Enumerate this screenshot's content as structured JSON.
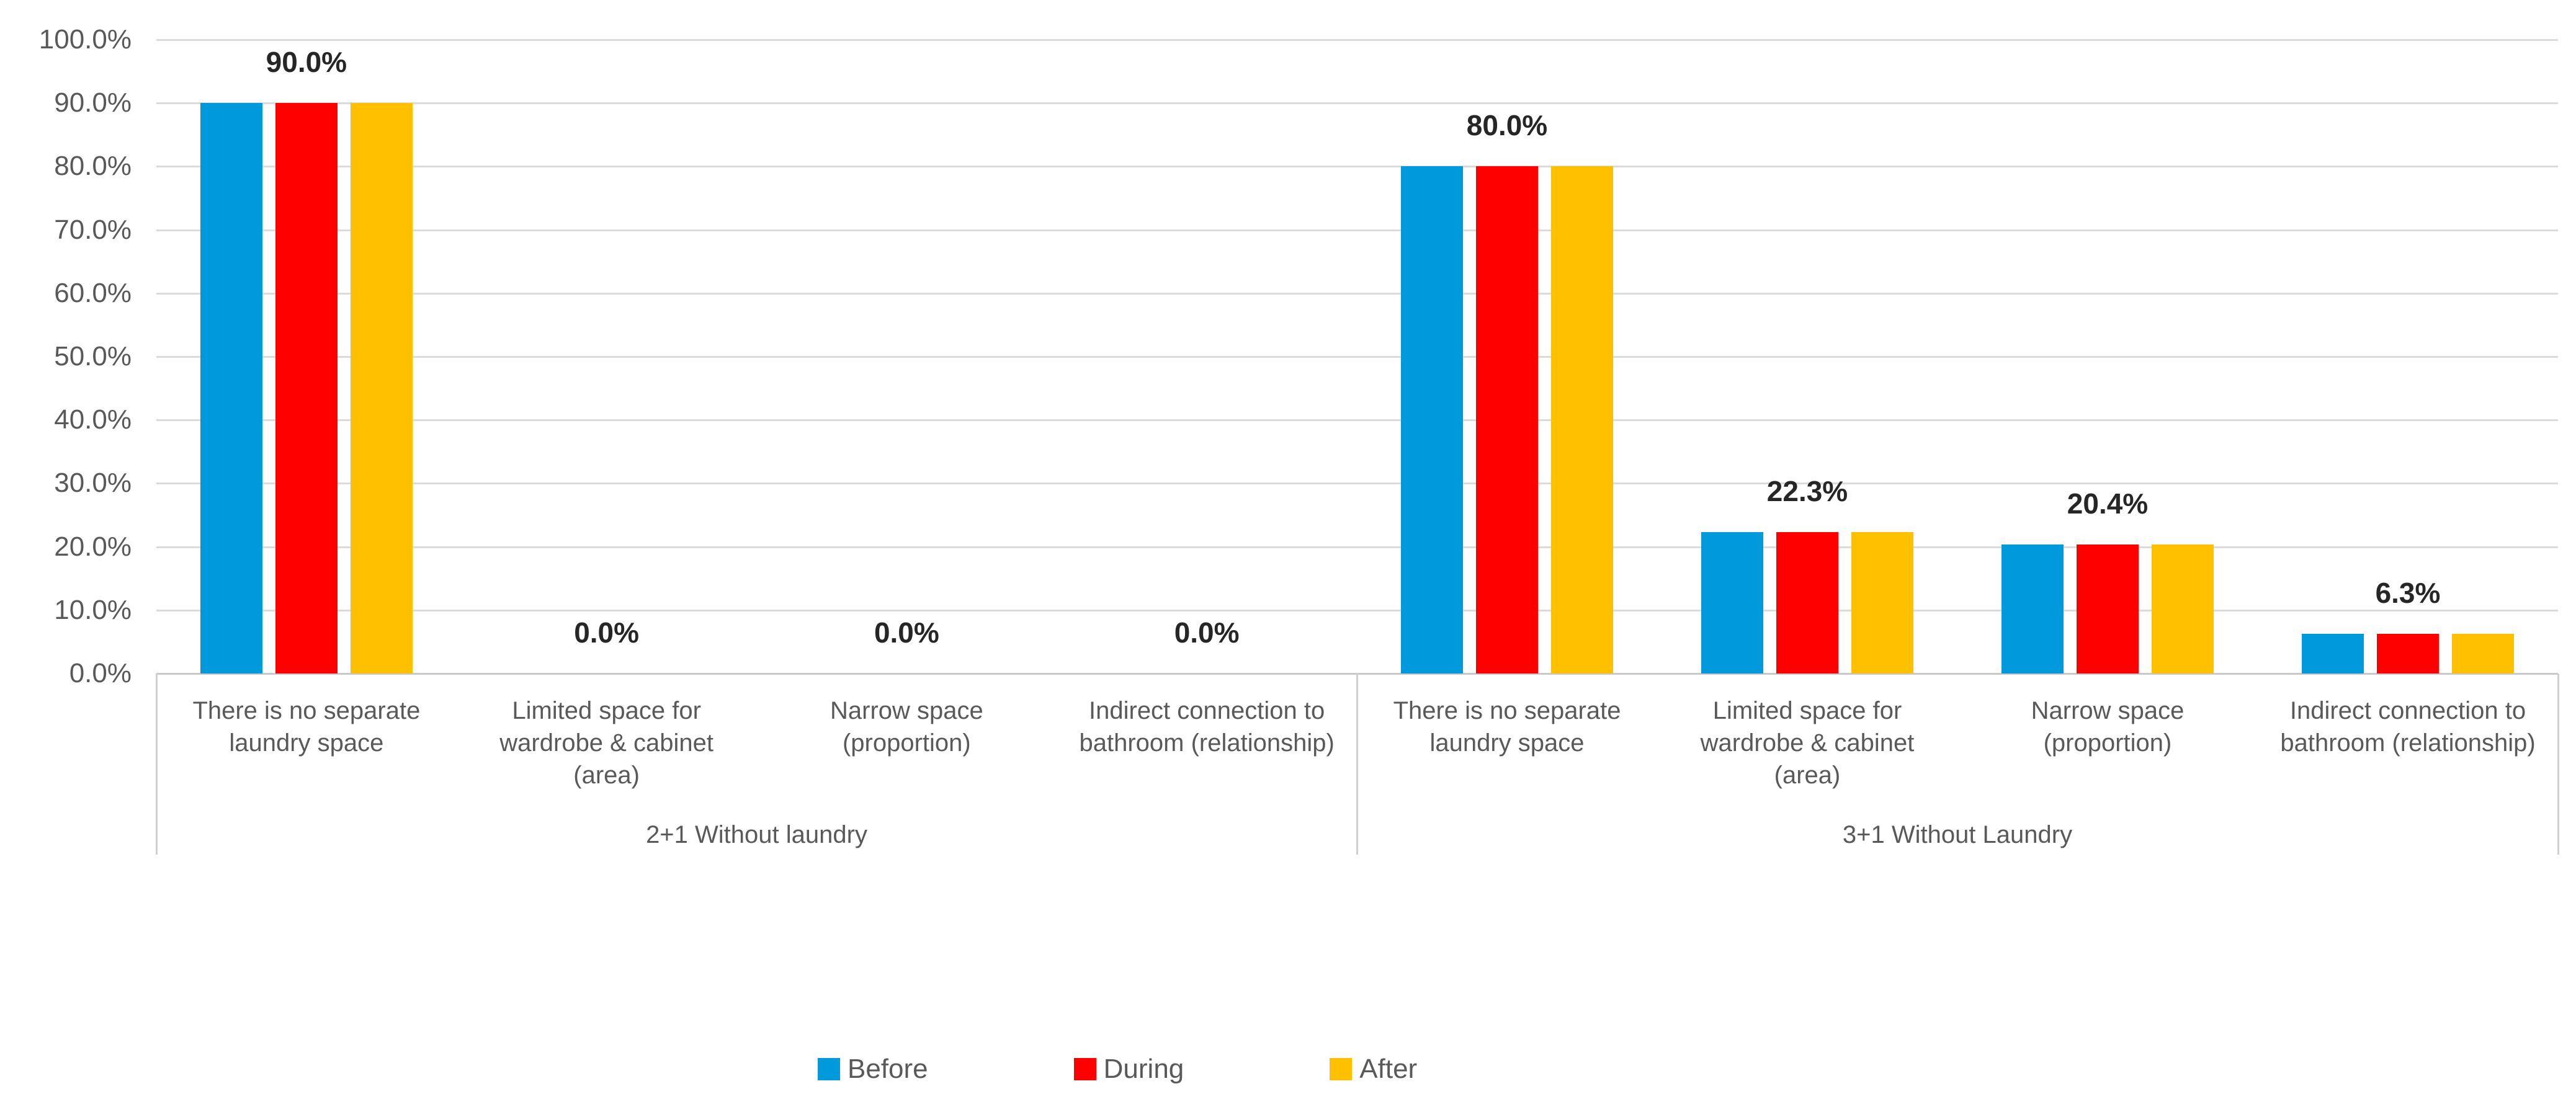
{
  "chart_data": {
    "type": "bar",
    "title": "",
    "y_axis": {
      "min": 0,
      "max": 100,
      "step": 10,
      "tick_labels": [
        "0.0%",
        "10.0%",
        "20.0%",
        "30.0%",
        "40.0%",
        "50.0%",
        "60.0%",
        "70.0%",
        "80.0%",
        "90.0%",
        "100.0%"
      ],
      "gridlines": true
    },
    "groups": [
      {
        "label": "2+1 Without laundry",
        "categories": [
          "There is no separate\nlaundry space",
          "Limited space for\nwardrobe & cabinet\n(area)",
          "Narrow space\n(proportion)",
          "Indirect connection to\nbathroom (relationship)"
        ]
      },
      {
        "label": "3+1 Without Laundry",
        "categories": [
          "There is no separate\nlaundry space",
          "Limited space for\nwardrobe & cabinet\n(area)",
          "Narrow space\n(proportion)",
          "Indirect connection to\nbathroom (relationship)"
        ]
      }
    ],
    "series": [
      {
        "name": "Before",
        "color": "#0099DB",
        "values": [
          90,
          0,
          0,
          0,
          80,
          22.3,
          20.4,
          6.3
        ]
      },
      {
        "name": "During",
        "color": "#FF0000",
        "values": [
          90,
          0,
          0,
          0,
          80,
          22.3,
          20.4,
          6.3
        ]
      },
      {
        "name": "After",
        "color": "#FFC000",
        "values": [
          90,
          0,
          0,
          0,
          80,
          22.3,
          20.4,
          6.3
        ]
      }
    ],
    "data_labels": [
      "90.0%",
      "0.0%",
      "0.0%",
      "0.0%",
      "80.0%",
      "22.3%",
      "20.4%",
      "6.3%"
    ],
    "legend_position": "bottom"
  },
  "colors": {
    "background": "#FFFFFF",
    "gridline": "#DBDBDB",
    "axis_line": "#C9C9C9",
    "category_border": "#D0D0D0",
    "axis_text": "#595959",
    "data_label_text": "#262626"
  }
}
